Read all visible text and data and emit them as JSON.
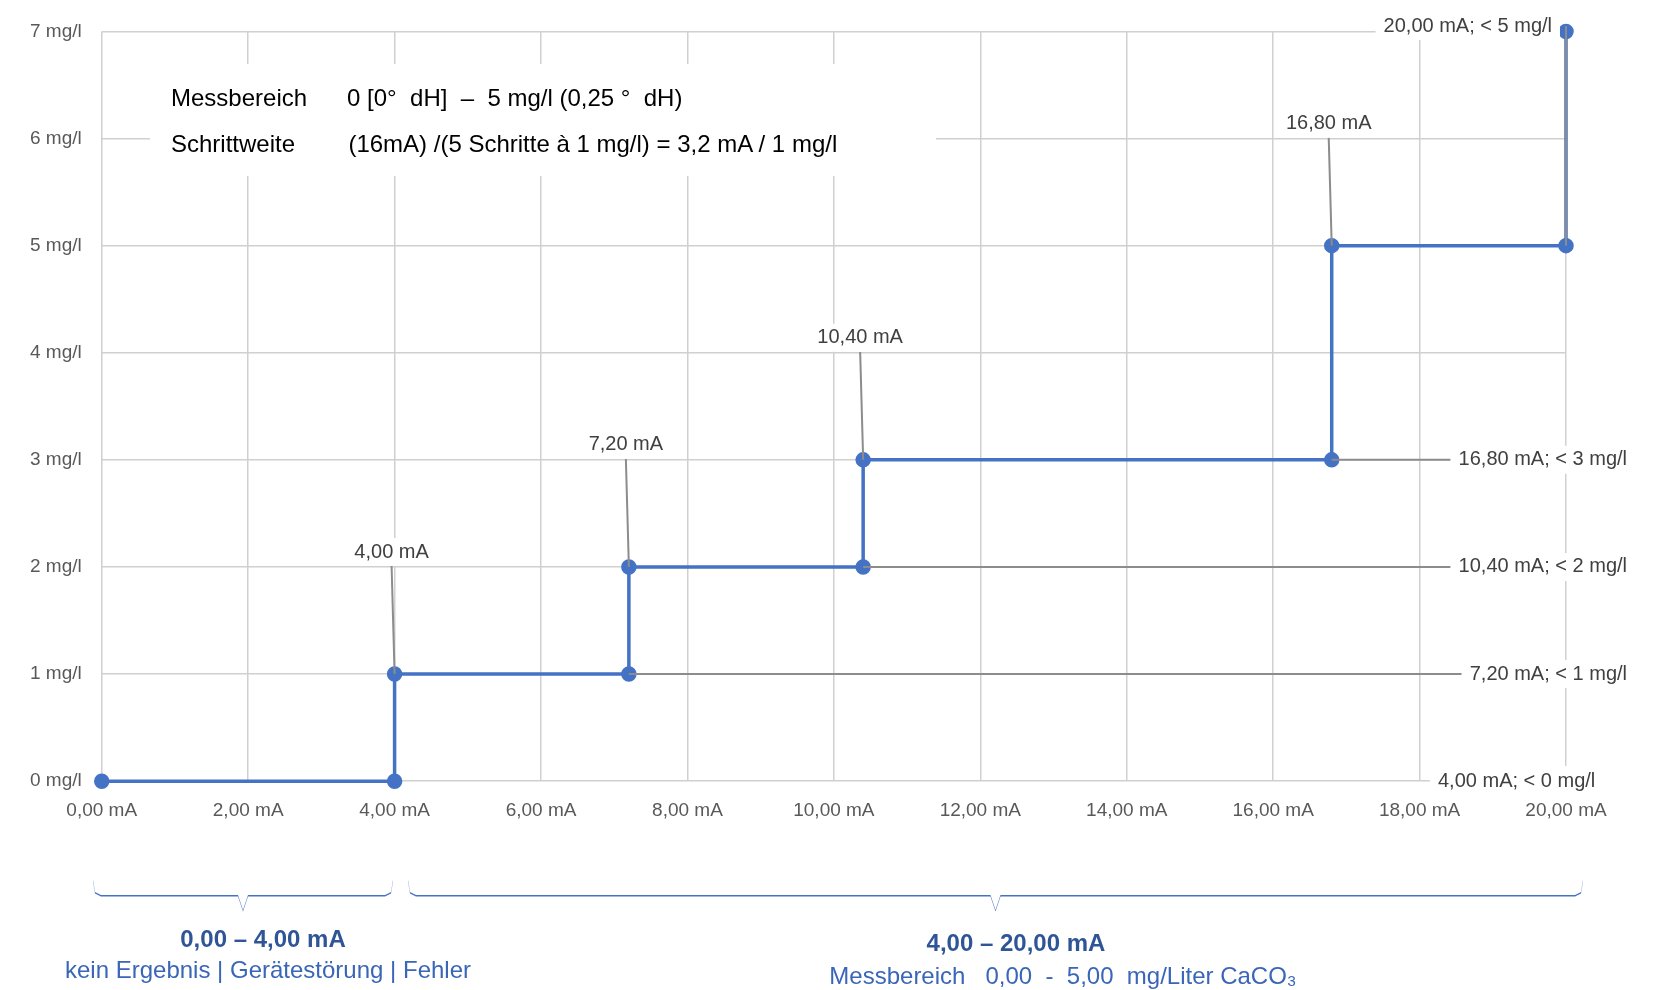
{
  "chart_data": {
    "type": "line",
    "series": [
      {
        "color": "#4472c4",
        "x": [
          0,
          4,
          4,
          7.2,
          7.2,
          10.4,
          10.4,
          16.8,
          16.8,
          20,
          20
        ],
        "values": [
          0,
          0,
          1,
          1,
          2,
          2,
          3,
          3,
          5,
          5,
          7
        ]
      }
    ],
    "xlim": [
      0,
      20
    ],
    "ylim": [
      0,
      7
    ],
    "xticks": [
      {
        "value": 0,
        "label": "0,00 mA"
      },
      {
        "value": 2,
        "label": "2,00 mA"
      },
      {
        "value": 4,
        "label": "4,00 mA"
      },
      {
        "value": 6,
        "label": "6,00 mA"
      },
      {
        "value": 8,
        "label": "8,00 mA"
      },
      {
        "value": 10,
        "label": "10,00 mA"
      },
      {
        "value": 12,
        "label": "12,00 mA"
      },
      {
        "value": 14,
        "label": "14,00 mA"
      },
      {
        "value": 16,
        "label": "16,00 mA"
      },
      {
        "value": 18,
        "label": "18,00 mA"
      },
      {
        "value": 20,
        "label": "20,00 mA"
      }
    ],
    "yticks": [
      {
        "value": 0,
        "label": "0 mg/l"
      },
      {
        "value": 1,
        "label": "1 mg/l"
      },
      {
        "value": 2,
        "label": "2 mg/l"
      },
      {
        "value": 3,
        "label": "3 mg/l"
      },
      {
        "value": 4,
        "label": "4 mg/l"
      },
      {
        "value": 5,
        "label": "5 mg/l"
      },
      {
        "value": 6,
        "label": "6 mg/l"
      },
      {
        "value": 7,
        "label": "7 mg/l"
      }
    ],
    "grid": true,
    "legend": false,
    "marker": "circle",
    "line_style": "solid",
    "annotations": [
      "Messbereich      0 [0°  dH]  –  5 mg/l (0,25 °  dH)",
      "Schrittweite        (16mA) /(5 Schritte à 1 mg/l) = 3,2 mA / 1 mg/l",
      "0,00 – 4,00 mA",
      "kein Ergebnis | Gerätestörung | Fehler",
      "4,00 – 20,00 mA",
      "Messbereich   0,00  -  5,00  mg/Liter CaCO₃",
      {
        "text": "4,00 mA",
        "x": 4,
        "y": 1
      },
      {
        "text": "7,20 mA",
        "x": 7.2,
        "y": 2
      },
      {
        "text": "10,40 mA",
        "x": 10.4,
        "y": 3
      },
      {
        "text": "16,80 mA",
        "x": 16.8,
        "y": 5
      },
      {
        "text": "20,00 mA; < 5 mg/l",
        "x": 20,
        "y": 5
      },
      {
        "text": "16,80 mA; < 3 mg/l",
        "x": 16.8,
        "y": 3
      },
      {
        "text": "10,40 mA; < 2 mg/l",
        "x": 10.4,
        "y": 2
      },
      {
        "text": "7,20 mA; < 1 mg/l",
        "x": 7.2,
        "y": 1
      },
      "4,00 mA; < 0 mg/l"
    ]
  }
}
